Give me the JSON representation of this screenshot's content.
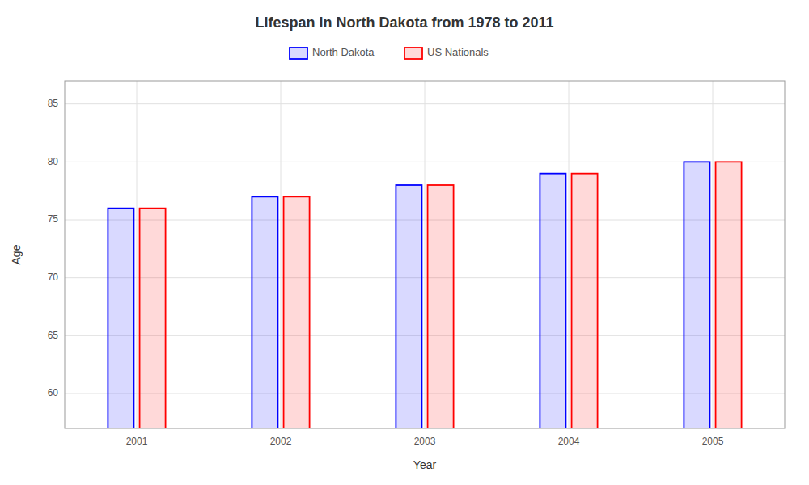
{
  "chart_data": {
    "type": "bar",
    "title": "Lifespan in North Dakota from 1978 to 2011",
    "x_label": "Year",
    "y_label": "Age",
    "categories": [
      "2001",
      "2002",
      "2003",
      "2004",
      "2005"
    ],
    "series": [
      {
        "name": "North Dakota",
        "color": "#0000ff",
        "values": [
          76,
          77,
          78,
          79,
          80
        ]
      },
      {
        "name": "US Nationals",
        "color": "#ff0000",
        "values": [
          76,
          77,
          78,
          79,
          80
        ]
      }
    ],
    "ylim": [
      57,
      87
    ],
    "yticks": [
      60,
      65,
      70,
      75,
      80,
      85
    ],
    "grid": true,
    "legend": "top"
  }
}
